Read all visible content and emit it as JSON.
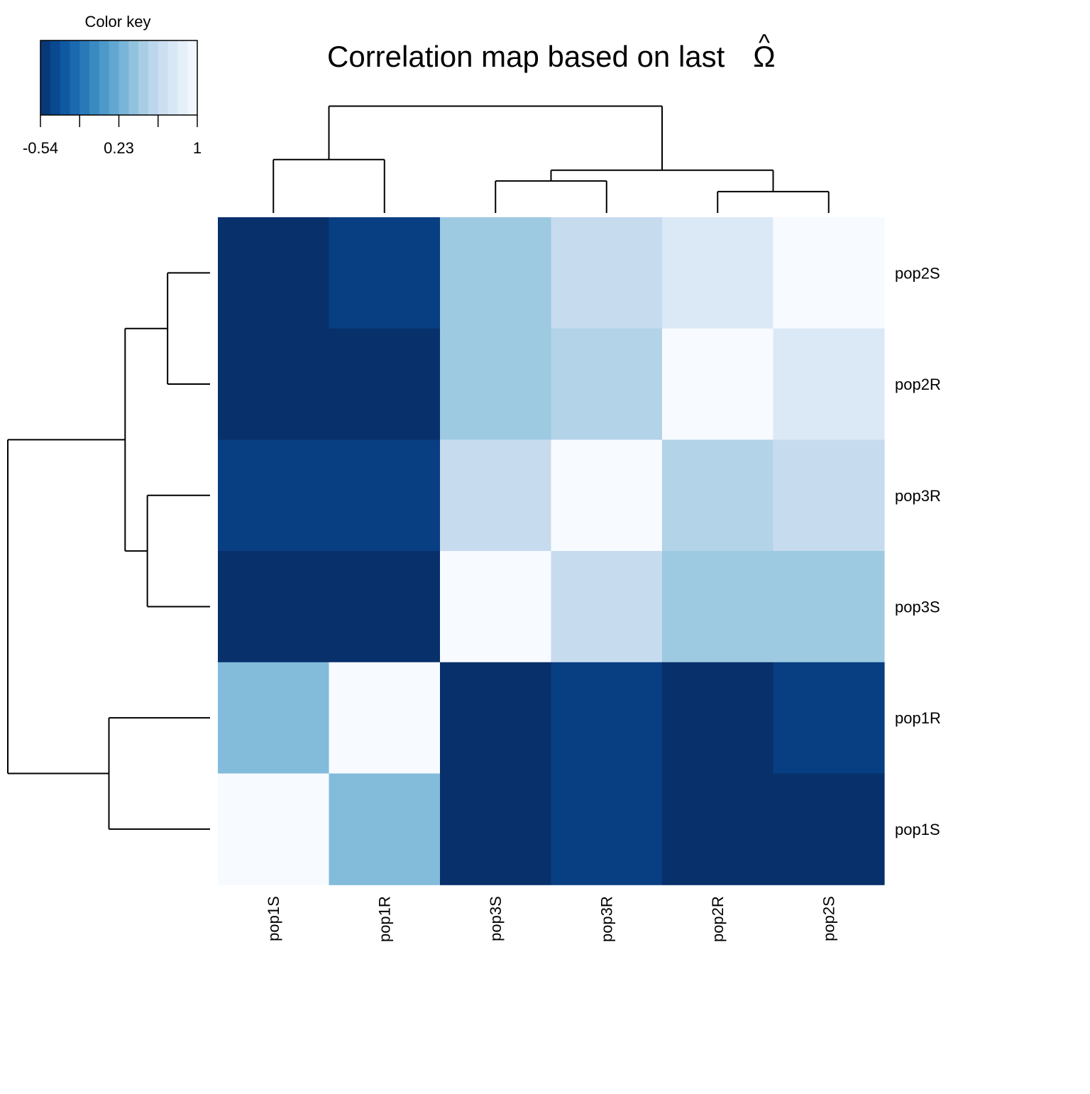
{
  "chart_data": {
    "type": "heatmap",
    "title": "Correlation map based on last Ω̂",
    "title_parts": {
      "text": "Correlation map based on last",
      "symbol": "Ω",
      "accent": "^"
    },
    "columns": [
      "pop1S",
      "pop1R",
      "pop3S",
      "pop3R",
      "pop2R",
      "pop2S"
    ],
    "rows": [
      "pop2S",
      "pop2R",
      "pop3R",
      "pop3S",
      "pop1R",
      "pop1S"
    ],
    "values": [
      [
        -0.54,
        -0.45,
        0.42,
        0.62,
        0.78,
        1.0
      ],
      [
        -0.54,
        -0.54,
        0.42,
        0.52,
        1.0,
        0.78
      ],
      [
        -0.45,
        -0.45,
        0.62,
        1.0,
        0.52,
        0.62
      ],
      [
        -0.54,
        -0.54,
        1.0,
        0.62,
        0.42,
        0.42
      ],
      [
        0.32,
        1.0,
        -0.54,
        -0.45,
        -0.54,
        -0.45
      ],
      [
        1.0,
        0.32,
        -0.54,
        -0.45,
        -0.54,
        -0.54
      ]
    ],
    "color_scale": {
      "min": -0.54,
      "max": 1.0,
      "colors": [
        "#08306b",
        "#08519c",
        "#2171b5",
        "#4292c6",
        "#6baed6",
        "#9ecae1",
        "#c6dbef",
        "#deebf7",
        "#f7fbff"
      ]
    },
    "color_key": {
      "title": "Color key",
      "ticks": [
        -0.54,
        0.23,
        1
      ],
      "tick_labels": [
        "-0.54",
        "0.23",
        "1"
      ]
    },
    "column_dendrogram": {
      "merges": [
        {
          "left": "pop1S",
          "right": "pop1R",
          "height": 0.35
        },
        {
          "left": "pop2R",
          "right": "pop2S",
          "height": 0.14
        },
        {
          "left": "pop3S",
          "right": "pop3R",
          "height": 0.21
        },
        {
          "left": "pop3S|pop3R",
          "right": "pop2R|pop2S",
          "height": 0.28
        },
        {
          "left": "pop1S|pop1R",
          "right": "pop3S|pop3R|pop2R|pop2S",
          "height": 0.7
        }
      ]
    },
    "row_dendrogram": {
      "merges": [
        {
          "left": "pop2S",
          "right": "pop2R",
          "height": 0.21
        },
        {
          "left": "pop3R",
          "right": "pop3S",
          "height": 0.31
        },
        {
          "left": "pop2S|pop2R",
          "right": "pop3R|pop3S",
          "height": 0.42
        },
        {
          "left": "pop1R",
          "right": "pop1S",
          "height": 0.5
        },
        {
          "left": "pop2S|pop2R|pop3R|pop3S",
          "right": "pop1R|pop1S",
          "height": 1.0
        }
      ]
    }
  }
}
